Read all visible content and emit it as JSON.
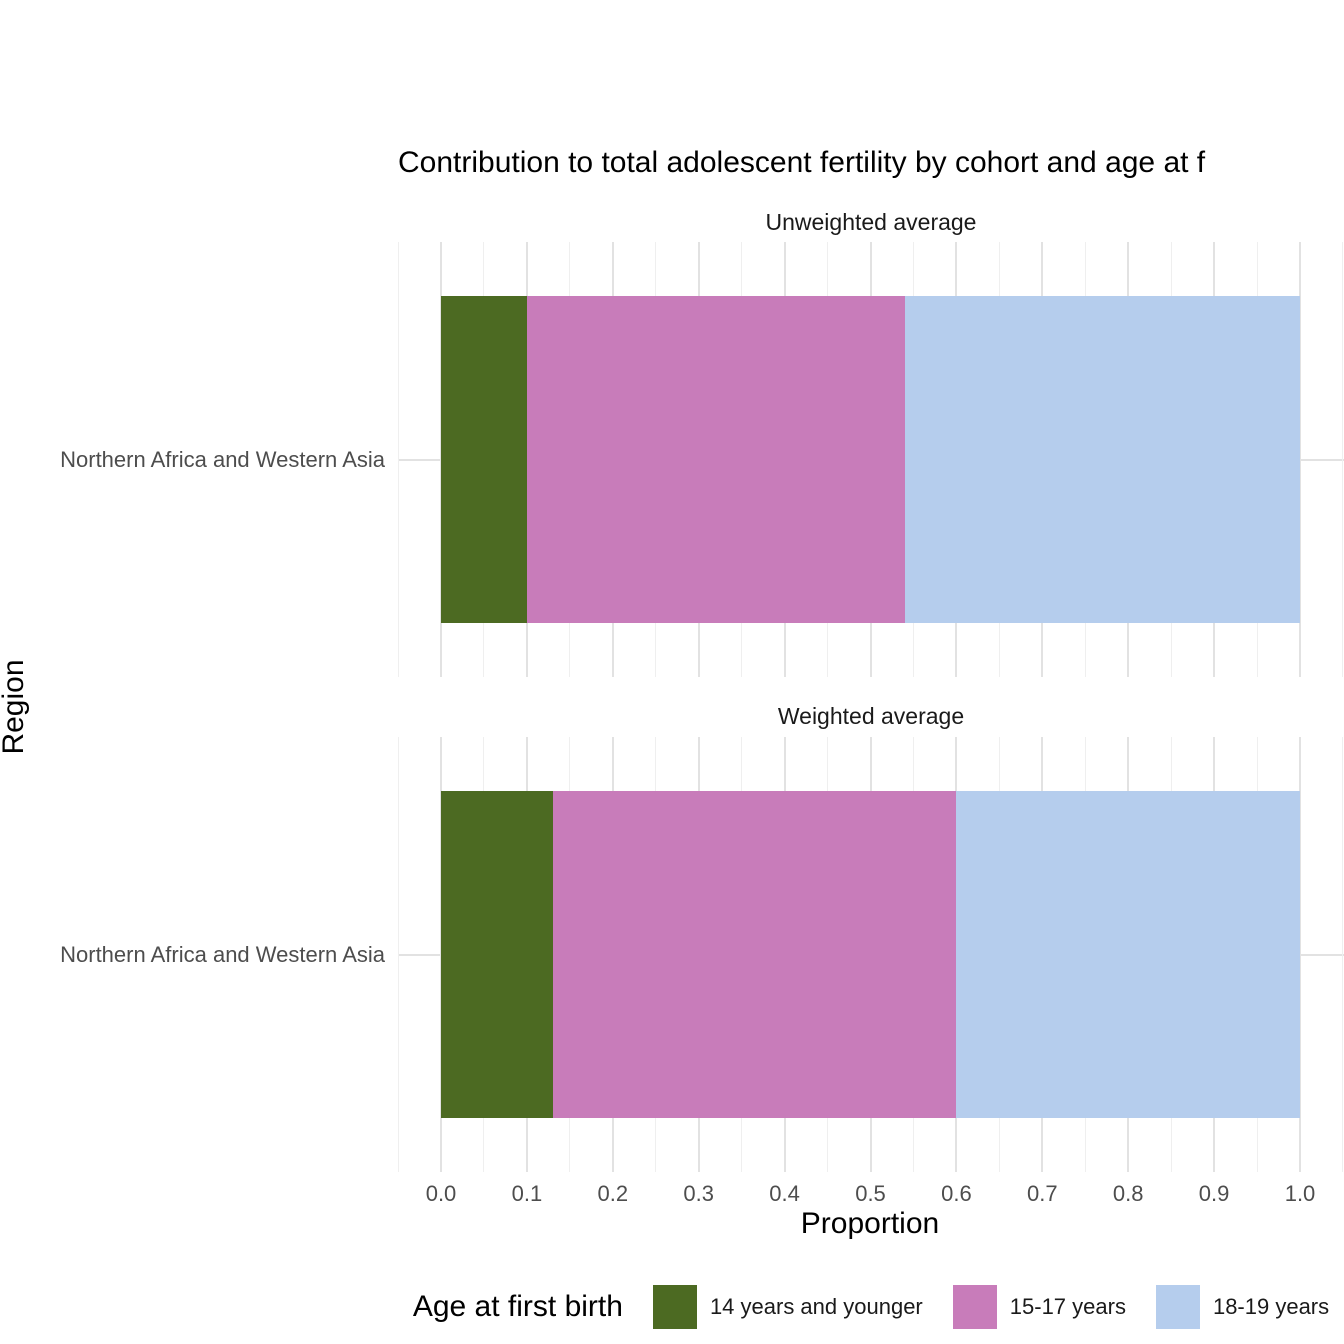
{
  "chart_data": {
    "type": "bar",
    "orientation": "horizontal",
    "stacked": true,
    "title": "Contribution to total adolescent fertility by cohort and age at f",
    "facets": [
      "Unweighted average",
      "Weighted average"
    ],
    "categories": [
      "Northern Africa and Western Asia"
    ],
    "xlabel": "Proportion",
    "ylabel": "Region",
    "legend_title": "Age at first birth",
    "legend_position": "bottom",
    "xlim": [
      0.0,
      1.0
    ],
    "x_ticks": [
      "0.0",
      "0.1",
      "0.2",
      "0.3",
      "0.4",
      "0.5",
      "0.6",
      "0.7",
      "0.8",
      "0.9",
      "1.0"
    ],
    "grid": true,
    "series": [
      {
        "name": "14 years and younger",
        "color": "#4C6A22",
        "values": [
          0.1,
          0.13
        ]
      },
      {
        "name": "15-17 years",
        "color": "#C87CBA",
        "values": [
          0.44,
          0.47
        ]
      },
      {
        "name": "18-19 years",
        "color": "#B5CDED",
        "values": [
          0.46,
          0.4
        ]
      }
    ],
    "colors": {
      "tick_text": "#4d4d4d",
      "grid_major": "#E2E2E2",
      "grid_minor": "#EFEFEF"
    }
  }
}
